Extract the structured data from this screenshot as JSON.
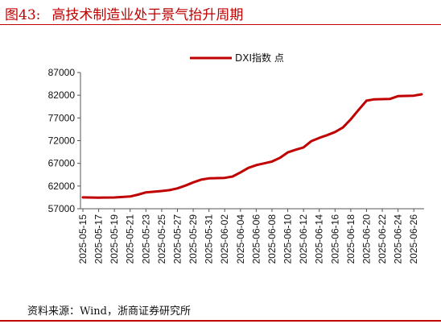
{
  "figure": {
    "number": "图43:",
    "title": "高技术制造业处于景气抬升周期",
    "source": "资料来源：Wind，浙商证券研究所"
  },
  "chart_data": {
    "type": "line",
    "title": "",
    "xlabel": "",
    "ylabel": "",
    "ylim": [
      57000,
      87000
    ],
    "yticks": [
      57000,
      62000,
      67000,
      72000,
      77000,
      82000,
      87000
    ],
    "xlim": [
      "2025-05-15",
      "2025-06-27"
    ],
    "xticks": [
      "2025-05-15",
      "2025-05-17",
      "2025-05-19",
      "2025-05-21",
      "2025-05-23",
      "2025-05-25",
      "2025-05-27",
      "2025-05-29",
      "2025-05-31",
      "2025-06-02",
      "2025-06-04",
      "2025-06-06",
      "2025-06-08",
      "2025-06-10",
      "2025-06-12",
      "2025-06-14",
      "2025-06-16",
      "2025-06-18",
      "2025-06-20",
      "2025-06-22",
      "2025-06-24",
      "2025-06-26"
    ],
    "legend_position": "top-center",
    "grid": false,
    "series": [
      {
        "name": "DXI指数 点",
        "color": "#c00000",
        "points": [
          [
            "2025-05-15",
            59500
          ],
          [
            "2025-05-17",
            59450
          ],
          [
            "2025-05-19",
            59480
          ],
          [
            "2025-05-21",
            59700
          ],
          [
            "2025-05-22",
            60100
          ],
          [
            "2025-05-23",
            60600
          ],
          [
            "2025-05-25",
            60900
          ],
          [
            "2025-05-26",
            61100
          ],
          [
            "2025-05-27",
            61500
          ],
          [
            "2025-05-28",
            62100
          ],
          [
            "2025-05-29",
            62800
          ],
          [
            "2025-05-30",
            63400
          ],
          [
            "2025-05-31",
            63700
          ],
          [
            "2025-06-02",
            63800
          ],
          [
            "2025-06-03",
            64100
          ],
          [
            "2025-06-04",
            65000
          ],
          [
            "2025-06-05",
            66000
          ],
          [
            "2025-06-06",
            66600
          ],
          [
            "2025-06-07",
            67000
          ],
          [
            "2025-06-08",
            67400
          ],
          [
            "2025-06-09",
            68200
          ],
          [
            "2025-06-10",
            69400
          ],
          [
            "2025-06-11",
            70000
          ],
          [
            "2025-06-12",
            70500
          ],
          [
            "2025-06-13",
            71900
          ],
          [
            "2025-06-14",
            72600
          ],
          [
            "2025-06-15",
            73200
          ],
          [
            "2025-06-16",
            73900
          ],
          [
            "2025-06-17",
            74900
          ],
          [
            "2025-06-18",
            76700
          ],
          [
            "2025-06-19",
            78800
          ],
          [
            "2025-06-20",
            80800
          ],
          [
            "2025-06-21",
            81100
          ],
          [
            "2025-06-23",
            81200
          ],
          [
            "2025-06-24",
            81800
          ],
          [
            "2025-06-26",
            81900
          ],
          [
            "2025-06-27",
            82200
          ]
        ]
      }
    ]
  }
}
